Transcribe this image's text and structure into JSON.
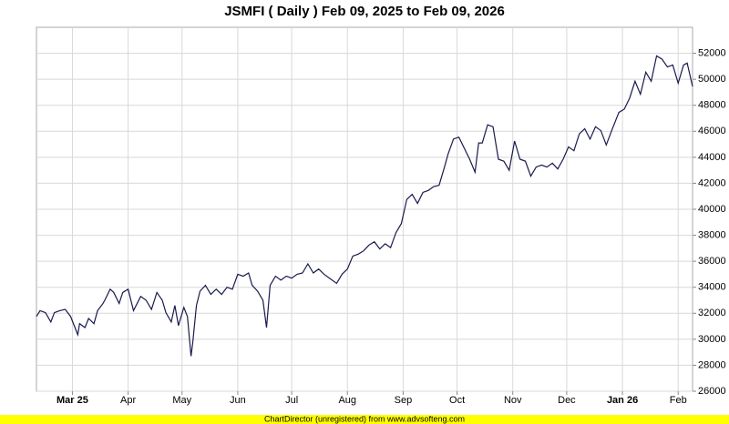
{
  "chart_data": {
    "type": "line",
    "title": "JSMFI ( Daily ) Feb 09, 2025 to Feb 09, 2026",
    "footer": "ChartDirector (unregistered) from www.advsofteng.com",
    "x": [
      0,
      2,
      5,
      8,
      10,
      13,
      16,
      19,
      23,
      24,
      27,
      29,
      32,
      34,
      37,
      38,
      41,
      43,
      46,
      48,
      51,
      54,
      56,
      58,
      61,
      64,
      67,
      70,
      72,
      75,
      77,
      79,
      82,
      84,
      86,
      87,
      89,
      91,
      94,
      97,
      100,
      103,
      106,
      109,
      112,
      115,
      118,
      120,
      123,
      126,
      128,
      130,
      133,
      136,
      139,
      142,
      145,
      148,
      151,
      154,
      157,
      160,
      163,
      167,
      170,
      173,
      176,
      179,
      182,
      185,
      188,
      191,
      194,
      197,
      200,
      203,
      206,
      209,
      212,
      215,
      218,
      221,
      224,
      227,
      229,
      232,
      235,
      238,
      241,
      244,
      246,
      248,
      251,
      254,
      257,
      260,
      263,
      266,
      269,
      272,
      275,
      278,
      281,
      284,
      287,
      290,
      293,
      296,
      299,
      302,
      305,
      308,
      311,
      314,
      317,
      320,
      324,
      327,
      330,
      333,
      336,
      339,
      342,
      345,
      348,
      351,
      354,
      357,
      360,
      362,
      365
    ],
    "series": [
      {
        "name": "JSMFI",
        "color": "#1a1a4e",
        "values": [
          31750,
          32200,
          32050,
          31330,
          32050,
          32200,
          32300,
          31750,
          30350,
          31200,
          30900,
          31600,
          31200,
          32200,
          32750,
          33000,
          33850,
          33600,
          32750,
          33600,
          33850,
          32200,
          32750,
          33300,
          33000,
          32300,
          33600,
          33000,
          32050,
          31330,
          32600,
          31050,
          32450,
          31750,
          28700,
          29800,
          32600,
          33700,
          34150,
          33450,
          33850,
          33450,
          34000,
          33850,
          35000,
          34850,
          35100,
          34150,
          33700,
          33000,
          30900,
          34150,
          34850,
          34550,
          34850,
          34700,
          35000,
          35100,
          35800,
          35100,
          35400,
          35000,
          34700,
          34300,
          35000,
          35400,
          36400,
          36550,
          36800,
          37250,
          37500,
          36950,
          37350,
          37050,
          38200,
          38900,
          40750,
          41150,
          40450,
          41300,
          41450,
          41750,
          41850,
          43250,
          44250,
          45400,
          45550,
          44700,
          43850,
          42850,
          45100,
          45100,
          46500,
          46350,
          43850,
          43700,
          43000,
          45250,
          43850,
          43700,
          42550,
          43250,
          43400,
          43250,
          43550,
          43100,
          43850,
          44800,
          44500,
          45800,
          46200,
          45400,
          46350,
          46050,
          44950,
          46050,
          47450,
          47700,
          48550,
          49850,
          48850,
          50550,
          49850,
          51800,
          51550,
          50950,
          51100,
          49700,
          51100,
          51250,
          49450
        ]
      }
    ],
    "xlim": [
      0,
      365
    ],
    "xticks": [
      {
        "value": 20,
        "label": "Mar 25"
      },
      {
        "value": 51,
        "label": "Apr"
      },
      {
        "value": 81,
        "label": "May"
      },
      {
        "value": 112,
        "label": "Jun"
      },
      {
        "value": 142,
        "label": "Jul"
      },
      {
        "value": 173,
        "label": "Aug"
      },
      {
        "value": 204,
        "label": "Sep"
      },
      {
        "value": 234,
        "label": "Oct"
      },
      {
        "value": 265,
        "label": "Nov"
      },
      {
        "value": 295,
        "label": "Dec"
      },
      {
        "value": 326,
        "label": "Jan 26"
      },
      {
        "value": 357,
        "label": "Feb"
      }
    ],
    "ylim": [
      26000,
      54000
    ],
    "yticks": [
      26000,
      28000,
      30000,
      32000,
      34000,
      36000,
      38000,
      40000,
      42000,
      44000,
      46000,
      48000,
      50000,
      52000
    ],
    "grid": true
  }
}
